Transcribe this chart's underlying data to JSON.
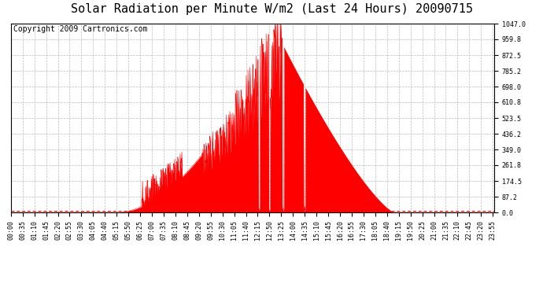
{
  "title": "Solar Radiation per Minute W/m2 (Last 24 Hours) 20090715",
  "copyright": "Copyright 2009 Cartronics.com",
  "y_max": 1047.0,
  "y_min": 0.0,
  "y_ticks": [
    0.0,
    87.2,
    174.5,
    261.8,
    349.0,
    436.2,
    523.5,
    610.8,
    698.0,
    785.2,
    872.5,
    959.8,
    1047.0
  ],
  "fill_color": "#ff0000",
  "background_color": "#ffffff",
  "grid_color": "#bbbbbb",
  "dashed_line_color": "#ff0000",
  "border_color": "#000000",
  "title_color": "#000000",
  "copyright_color": "#000000",
  "title_fontsize": 11,
  "copyright_fontsize": 7,
  "tick_fontsize": 6
}
